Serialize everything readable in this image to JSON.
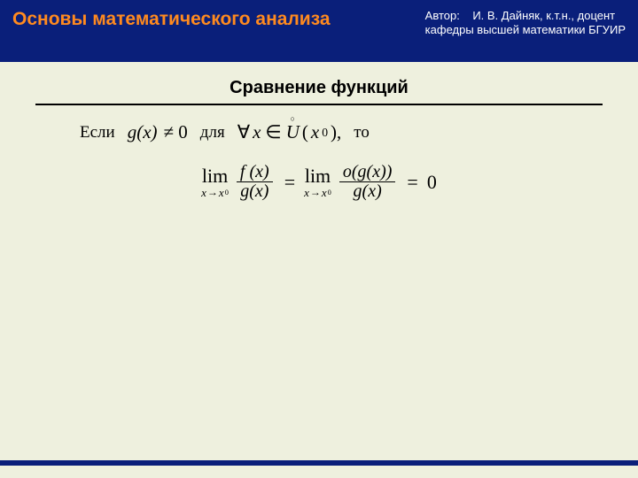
{
  "colors": {
    "header_bg": "#0a1f7a",
    "title_color": "#ff8a1f",
    "author_color": "#ffffff",
    "content_bg": "#eef0de",
    "text_color": "#000000",
    "divider_color": "#000000",
    "footer_bar_color": "#0a1f7a"
  },
  "typography": {
    "title_fontsize": 21,
    "author_fontsize": 13,
    "section_title_fontsize": 20,
    "body_fontsize": 19,
    "math_fontsize": 21,
    "fraction_fontsize": 20
  },
  "header": {
    "title": "Основы математического анализа",
    "author_label": "Автор:",
    "author_name": "И. В. Дайняк,  к.т.н., доцент",
    "author_affil": "кафедры высшей математики БГУИР"
  },
  "section_title": "Сравнение функций",
  "cond": {
    "if": "Если",
    "for": "для",
    "then": "то",
    "g_of_x": "g(x)",
    "neq": "≠ 0",
    "forall": "∀",
    "x_var": "x",
    "in": "∈",
    "U": "U",
    "paren_open": "(",
    "x0": "x",
    "x0_sub": "0",
    "paren_close": "),"
  },
  "formula": {
    "lim": "lim",
    "x": "x",
    "arrow": "→",
    "x0": "x",
    "x0_sub": "0",
    "f_of_x": "f (x)",
    "g_of_x": "g(x)",
    "o_g_of_x": "o(g(x))",
    "eq": "=",
    "zero": "0"
  }
}
